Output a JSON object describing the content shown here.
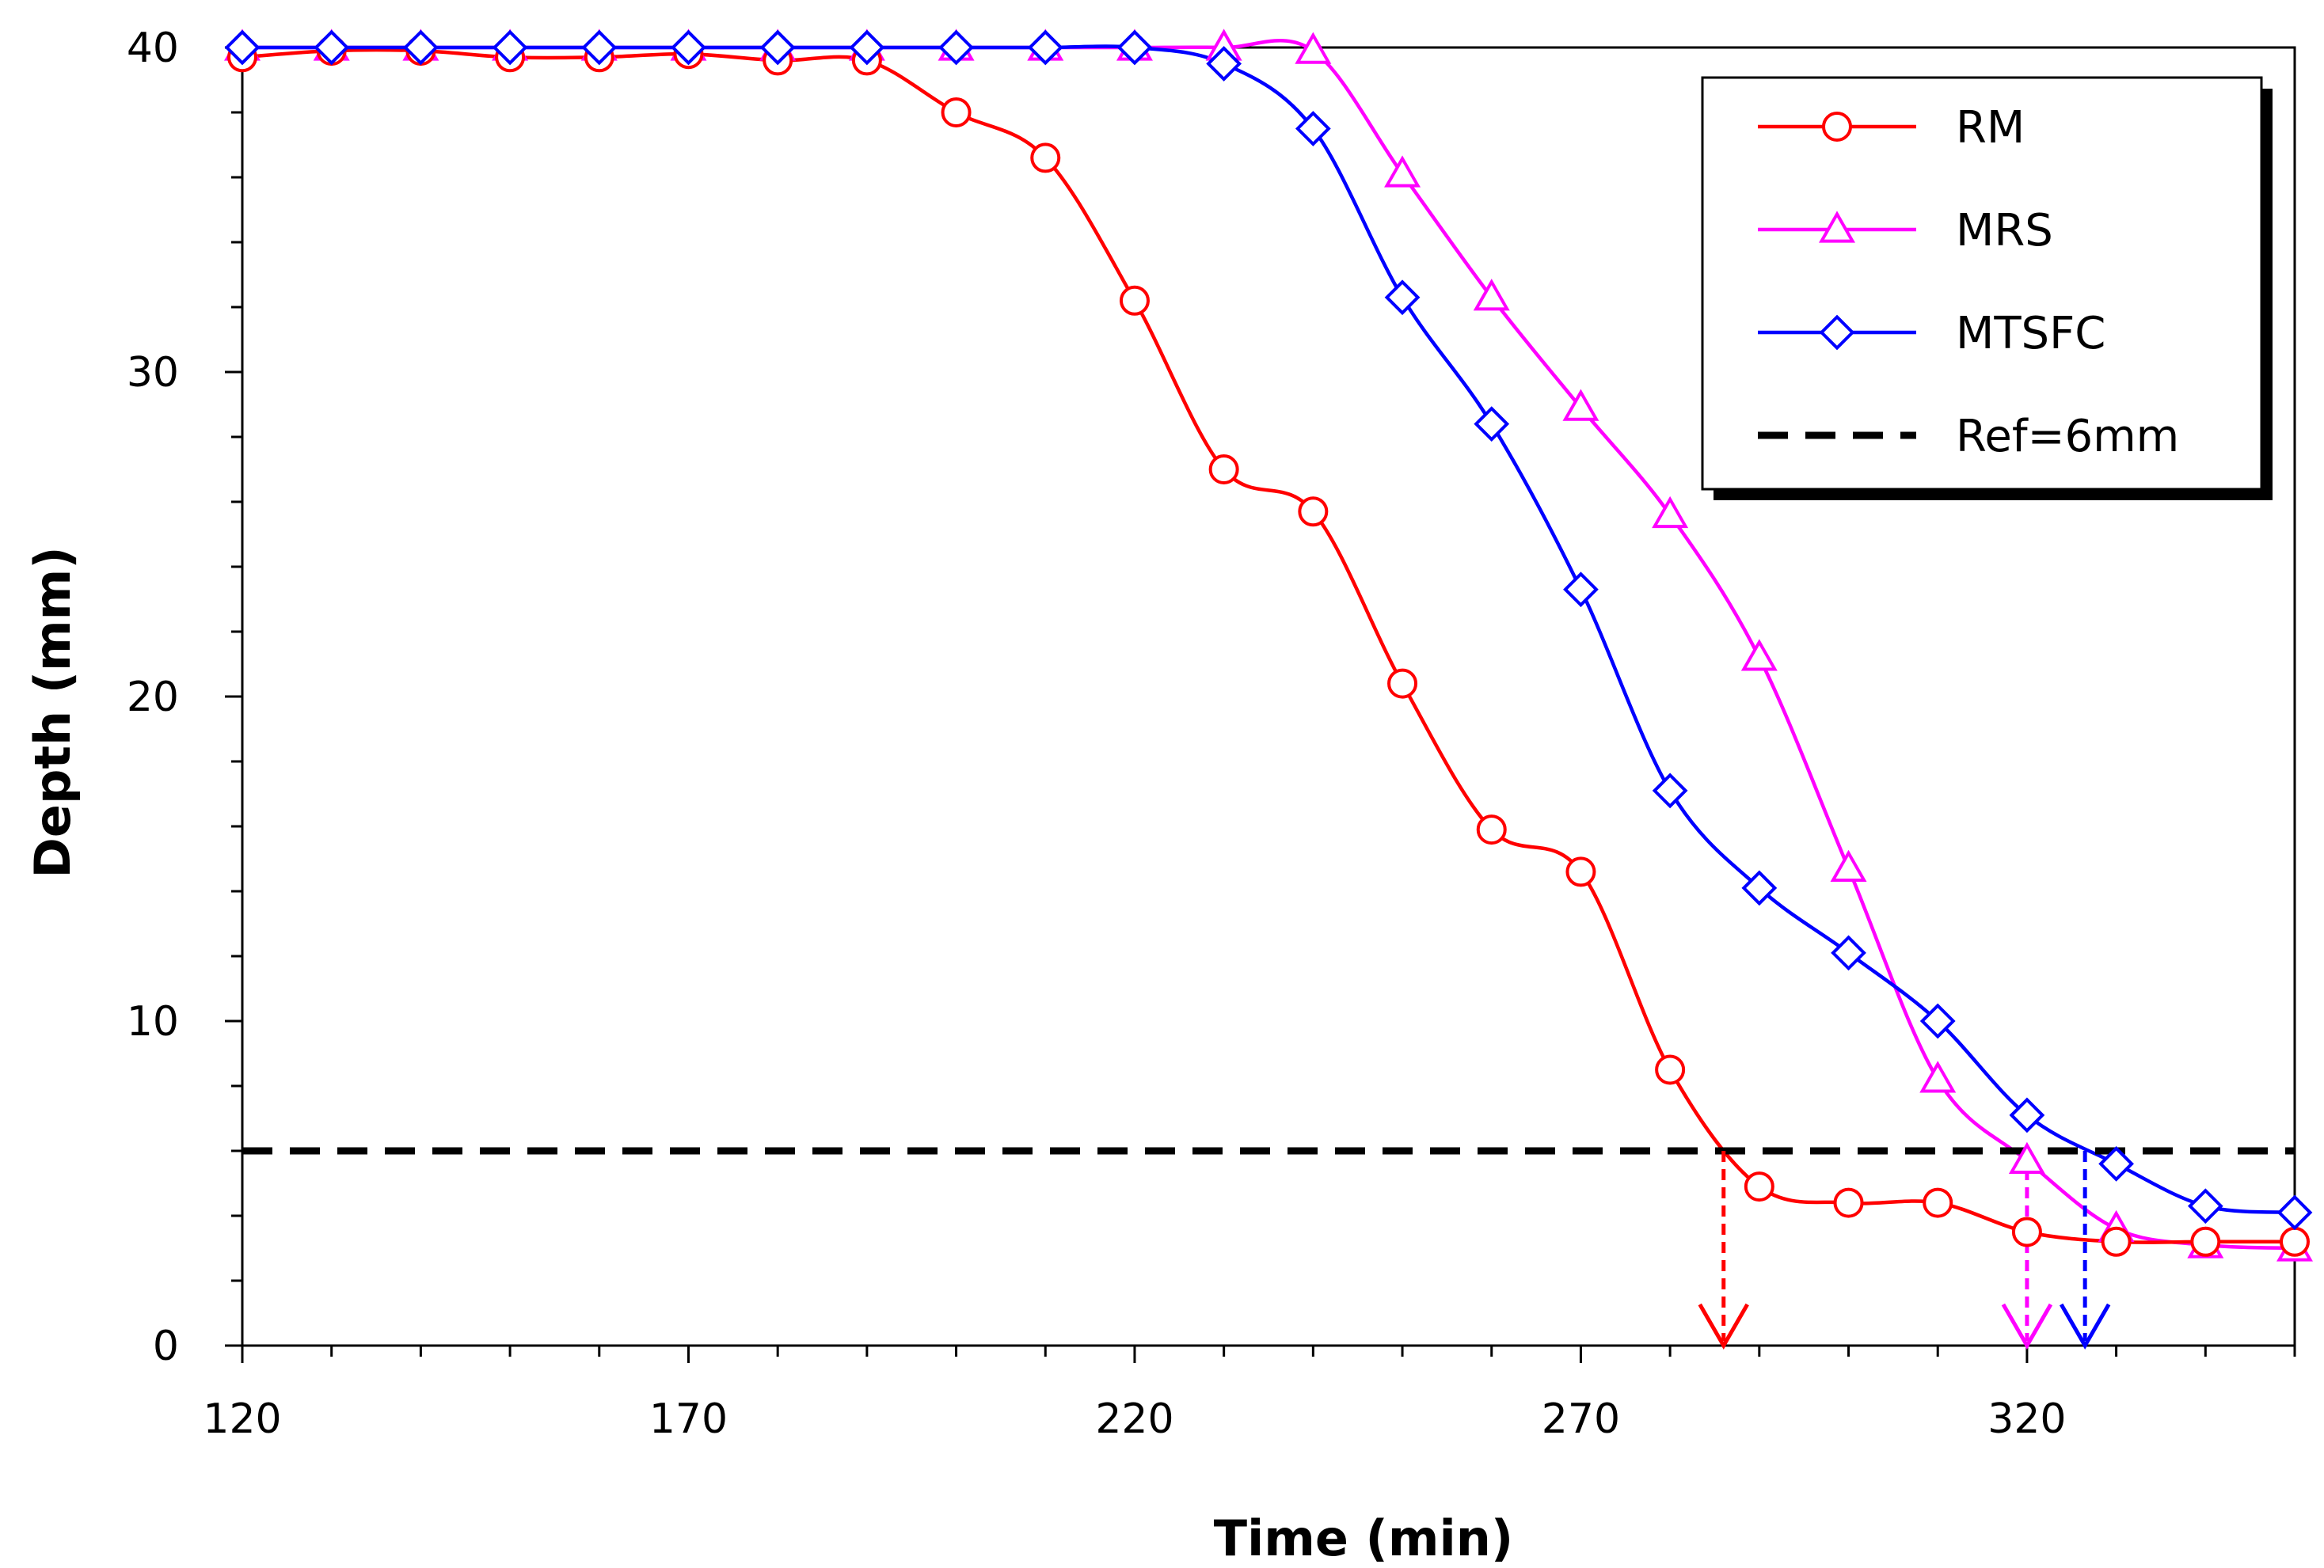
{
  "chart_data": {
    "type": "line",
    "title": "",
    "xlabel": "Time (min)",
    "ylabel": "Depth (mm)",
    "xlim": [
      120,
      350
    ],
    "ylim": [
      0,
      40
    ],
    "x_ticks": [
      120,
      170,
      220,
      270,
      320
    ],
    "y_ticks": [
      0,
      10,
      20,
      30,
      40
    ],
    "x_minor_step": 10,
    "y_minor_step": 2,
    "grid": false,
    "legend_position": "top-right",
    "series": [
      {
        "name": "RM",
        "color": "#ff0000",
        "marker": "circle",
        "x": [
          120,
          130,
          140,
          150,
          160,
          170,
          180,
          190,
          200,
          210,
          220,
          230,
          240,
          250,
          260,
          270,
          280,
          290,
          300,
          310,
          320,
          330,
          340,
          350
        ],
        "y": [
          39.7,
          39.9,
          39.9,
          39.7,
          39.7,
          39.8,
          39.6,
          39.6,
          38.0,
          36.6,
          32.2,
          27.0,
          25.7,
          20.4,
          15.9,
          14.6,
          8.5,
          4.9,
          4.4,
          4.4,
          3.5,
          3.2,
          3.2,
          3.2
        ]
      },
      {
        "name": "MRS",
        "color": "#ff00ff",
        "marker": "triangle",
        "x": [
          120,
          130,
          140,
          150,
          160,
          170,
          180,
          190,
          200,
          210,
          220,
          230,
          240,
          250,
          260,
          270,
          280,
          290,
          300,
          310,
          320,
          330,
          340,
          350
        ],
        "y": [
          40,
          40,
          40,
          40,
          40,
          40,
          40,
          40,
          40,
          40,
          40,
          40,
          39.9,
          36.1,
          32.3,
          28.9,
          25.6,
          21.2,
          14.7,
          8.2,
          5.7,
          3.6,
          3.1,
          3.0
        ]
      },
      {
        "name": "MTSFC",
        "color": "#0000ff",
        "marker": "diamond",
        "x": [
          120,
          130,
          140,
          150,
          160,
          170,
          180,
          190,
          200,
          210,
          220,
          230,
          240,
          250,
          260,
          270,
          280,
          290,
          300,
          310,
          320,
          330,
          340,
          350
        ],
        "y": [
          40,
          40,
          40,
          40,
          40,
          40,
          40,
          40,
          40,
          40,
          40,
          39.5,
          37.5,
          32.3,
          28.4,
          23.3,
          17.1,
          14.1,
          12.1,
          10.0,
          7.1,
          5.6,
          4.3,
          4.1
        ]
      },
      {
        "name": "Ref=6mm",
        "color": "#000000",
        "marker": "none",
        "dashed": true,
        "x": [
          120,
          350
        ],
        "y": [
          6,
          6
        ]
      }
    ],
    "annotations": [
      {
        "type": "arrow",
        "series": "RM",
        "color": "#ff0000",
        "x": 286,
        "y_from": 6,
        "y_to": 0
      },
      {
        "type": "arrow",
        "series": "MRS",
        "color": "#ff00ff",
        "x": 320,
        "y_from": 6,
        "y_to": 0
      },
      {
        "type": "arrow",
        "series": "MTSFC",
        "color": "#0000ff",
        "x": 326.5,
        "y_from": 6,
        "y_to": 0
      }
    ]
  }
}
